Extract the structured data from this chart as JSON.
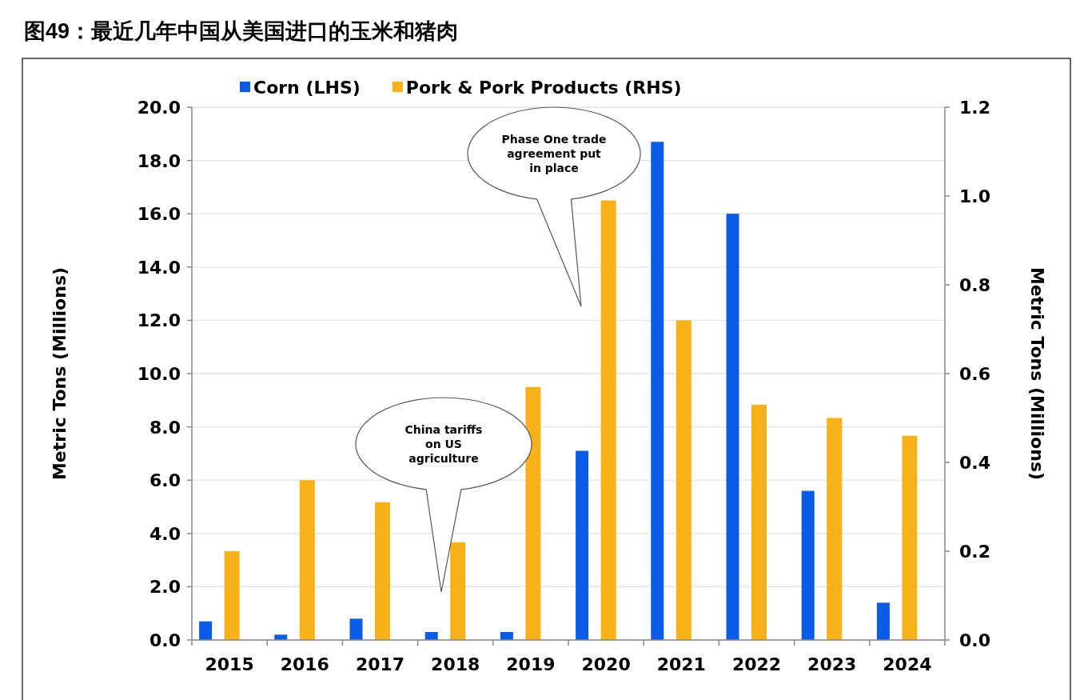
{
  "chart_data": {
    "type": "bar",
    "title": "图49：最近几年中国从美国进口的玉米和猪肉",
    "categories": [
      "2015",
      "2016",
      "2017",
      "2018",
      "2019",
      "2020",
      "2021",
      "2022",
      "2023",
      "2024"
    ],
    "series": [
      {
        "name": "Corn (LHS)",
        "color": "#0a5ce6",
        "values": [
          0.7,
          0.2,
          0.8,
          0.3,
          0.3,
          7.1,
          18.7,
          16.0,
          5.6,
          1.4
        ]
      },
      {
        "name": "Pork & Pork Products (RHS)",
        "color": "#f9b11a",
        "axis": "y2",
        "values": [
          0.2,
          0.36,
          0.31,
          0.22,
          0.57,
          0.99,
          0.72,
          0.53,
          0.5,
          0.46
        ]
      }
    ],
    "ylabel": "Metric Tons (Millions)",
    "y2label": "Metric Tons (Millions)",
    "ylim": [
      0,
      20
    ],
    "yticks": [
      {
        "value": 0,
        "label": "0.0"
      },
      {
        "value": 2,
        "label": "2.0"
      },
      {
        "value": 4,
        "label": "4.0"
      },
      {
        "value": 6,
        "label": "6.0"
      },
      {
        "value": 8,
        "label": "8.0"
      },
      {
        "value": 10,
        "label": "10.0"
      },
      {
        "value": 12,
        "label": "12.0"
      },
      {
        "value": 14,
        "label": "14.0"
      },
      {
        "value": 16,
        "label": "16.0"
      },
      {
        "value": 18,
        "label": "18.0"
      },
      {
        "value": 20,
        "label": "20.0"
      }
    ],
    "y2lim": [
      0,
      1.2
    ],
    "y2ticks": [
      {
        "value": 0,
        "label": "0.0"
      },
      {
        "value": 0.2,
        "label": "0.2"
      },
      {
        "value": 0.4,
        "label": "0.4"
      },
      {
        "value": 0.6,
        "label": "0.6"
      },
      {
        "value": 0.8,
        "label": "0.8"
      },
      {
        "value": 1.0,
        "label": "1.0"
      },
      {
        "value": 1.2,
        "label": "1.2"
      }
    ],
    "grid": "y",
    "legend": "top",
    "annotations": [
      "China tariffs on US agriculture",
      "Phase One trade agreement put in place"
    ]
  }
}
